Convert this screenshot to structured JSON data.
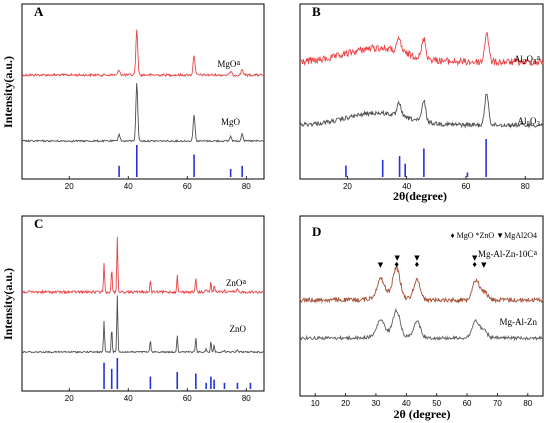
{
  "chart_data": [
    {
      "type": "line",
      "panel": "A",
      "xlabel": "",
      "ylabel": "Intensity(a.u.)",
      "xlim": [
        4,
        86
      ],
      "xticks": [
        20,
        40,
        60,
        80
      ],
      "series": [
        {
          "name": "MgOa",
          "color": "#e8393b",
          "peaks": [
            [
              36.9,
              0.12
            ],
            [
              42.9,
              1.0
            ],
            [
              62.3,
              0.45
            ],
            [
              74.7,
              0.08
            ],
            [
              78.6,
              0.13
            ]
          ]
        },
        {
          "name": "MgO",
          "color": "#444444",
          "peaks": [
            [
              36.9,
              0.12
            ],
            [
              42.9,
              1.0
            ],
            [
              62.3,
              0.45
            ],
            [
              74.7,
              0.08
            ],
            [
              78.6,
              0.13
            ]
          ]
        }
      ],
      "reference_lines": {
        "color": "#2233dd",
        "positions": [
          36.9,
          42.9,
          62.3,
          74.7,
          78.6
        ],
        "heights": [
          0.35,
          1.0,
          0.7,
          0.25,
          0.35
        ]
      }
    },
    {
      "type": "line",
      "panel": "B",
      "xlabel": "2θ(degree)",
      "ylabel": "",
      "xlim": [
        4,
        86
      ],
      "xticks": [
        20,
        40,
        60,
        80
      ],
      "series": [
        {
          "name": "Al2O3a",
          "color": "#e8393b",
          "peaks": [
            [
              37.5,
              0.35
            ],
            [
              45.8,
              0.55
            ],
            [
              67.0,
              0.85
            ]
          ]
        },
        {
          "name": "Al2O3",
          "color": "#444444",
          "peaks": [
            [
              37.5,
              0.35
            ],
            [
              45.8,
              0.55
            ],
            [
              67.0,
              0.85
            ]
          ]
        }
      ],
      "reference_lines": {
        "color": "#2233dd",
        "positions": [
          19.5,
          31.9,
          37.6,
          39.5,
          45.8,
          60.5,
          66.8
        ],
        "heights": [
          0.3,
          0.45,
          0.55,
          0.35,
          0.75,
          0.12,
          1.0
        ]
      }
    },
    {
      "type": "line",
      "panel": "C",
      "xlabel": "",
      "ylabel": "Intensity(a.u.)",
      "xlim": [
        4,
        86
      ],
      "xticks": [
        20,
        40,
        60,
        80
      ],
      "series": [
        {
          "name": "ZnOa",
          "color": "#e8393b",
          "peaks": [
            [
              31.8,
              0.55
            ],
            [
              34.4,
              0.42
            ],
            [
              36.3,
              1.0
            ],
            [
              47.5,
              0.2
            ],
            [
              56.6,
              0.3
            ],
            [
              62.9,
              0.25
            ],
            [
              66.4,
              0.06
            ],
            [
              68.0,
              0.2
            ],
            [
              69.1,
              0.12
            ],
            [
              72.6,
              0.03
            ],
            [
              77.0,
              0.05
            ]
          ]
        },
        {
          "name": "ZnO",
          "color": "#444444",
          "peaks": [
            [
              31.8,
              0.55
            ],
            [
              34.4,
              0.42
            ],
            [
              36.3,
              1.0
            ],
            [
              47.5,
              0.2
            ],
            [
              56.6,
              0.3
            ],
            [
              62.9,
              0.25
            ],
            [
              66.4,
              0.06
            ],
            [
              68.0,
              0.2
            ],
            [
              69.1,
              0.12
            ],
            [
              72.6,
              0.03
            ],
            [
              77.0,
              0.05
            ]
          ]
        }
      ],
      "reference_lines": {
        "color": "#2233dd",
        "positions": [
          31.8,
          34.4,
          36.3,
          47.5,
          56.6,
          62.9,
          66.4,
          68.0,
          69.1,
          72.6,
          77.0,
          81.4
        ],
        "heights": [
          0.85,
          0.65,
          1.0,
          0.4,
          0.55,
          0.5,
          0.2,
          0.4,
          0.3,
          0.2,
          0.2,
          0.2
        ]
      }
    },
    {
      "type": "line",
      "panel": "D",
      "xlabel": "2θ (degree)",
      "ylabel": "",
      "xlim": [
        5,
        85
      ],
      "xticks": [
        10,
        20,
        30,
        40,
        50,
        60,
        70,
        80
      ],
      "legend": "♦ MgO  *ZnO  ▼MgAl2O4",
      "series": [
        {
          "name": "Mg-Al-Zn-10Ca",
          "color": "#a0452a",
          "peaks": [
            [
              31.5,
              0.3
            ],
            [
              36.8,
              0.5
            ],
            [
              43.5,
              0.35
            ],
            [
              62.8,
              0.35
            ],
            [
              65.5,
              0.15
            ]
          ]
        },
        {
          "name": "Mg-Al-Zn",
          "color": "#555555",
          "peaks": [
            [
              31.5,
              0.3
            ],
            [
              36.8,
              0.5
            ],
            [
              43.5,
              0.35
            ],
            [
              62.8,
              0.35
            ],
            [
              65.5,
              0.15
            ]
          ]
        }
      ],
      "markers": [
        {
          "x": 31.5,
          "symbol": "▼"
        },
        {
          "x": 36.8,
          "symbol": "♦"
        },
        {
          "x": 37.0,
          "symbol": "▼"
        },
        {
          "x": 43.5,
          "symbol": "♦"
        },
        {
          "x": 43.5,
          "symbol": "▼"
        },
        {
          "x": 62.5,
          "symbol": "♦"
        },
        {
          "x": 62.5,
          "symbol": "▼"
        },
        {
          "x": 65.5,
          "symbol": "▼"
        }
      ]
    }
  ]
}
